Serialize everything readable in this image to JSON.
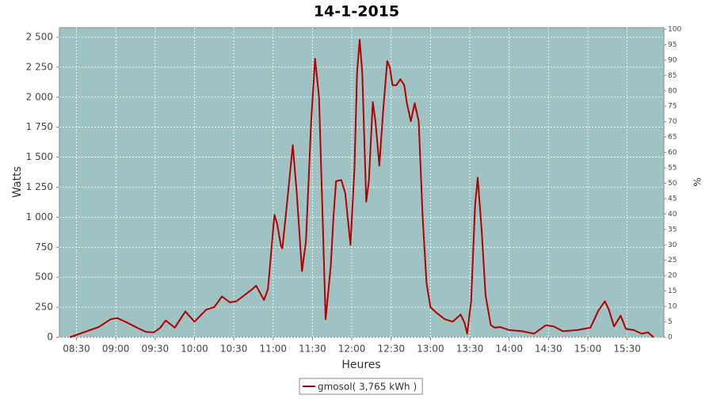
{
  "chart_data": {
    "type": "line",
    "title": "14-1-2015",
    "x_label": "Heures",
    "y_label": "Watts",
    "y2_label": "%",
    "x": [
      "08:25",
      "08:47",
      "08:56",
      "09:01",
      "09:09",
      "09:17",
      "09:23",
      "09:29",
      "09:34",
      "09:38",
      "09:45",
      "09:53",
      "10:00",
      "10:09",
      "10:15",
      "10:21",
      "10:27",
      "10:32",
      "10:44",
      "10:47",
      "10:53",
      "10:56",
      "11:01",
      "11:03",
      "11:06",
      "11:07",
      "11:10",
      "11:15",
      "11:18",
      "11:22",
      "11:25",
      "11:29",
      "11:32",
      "11:35",
      "11:38",
      "11:40",
      "11:44",
      "11:46",
      "11:48",
      "11:52",
      "11:55",
      "11:59",
      "12:02",
      "12:04",
      "12:06",
      "12:08",
      "12:11",
      "12:13",
      "12:16",
      "12:18",
      "12:21",
      "12:24",
      "12:27",
      "12:29",
      "12:31",
      "12:34",
      "12:37",
      "12:40",
      "12:42",
      "12:45",
      "12:48",
      "12:51",
      "12:54",
      "12:57",
      "13:00",
      "13:05",
      "13:11",
      "13:17",
      "13:23",
      "13:26",
      "13:28",
      "13:31",
      "13:34",
      "13:36",
      "13:39",
      "13:42",
      "13:46",
      "13:49",
      "13:53",
      "14:00",
      "14:10",
      "14:19",
      "14:28",
      "14:34",
      "14:41",
      "14:52",
      "15:02",
      "15:08",
      "15:13",
      "15:16",
      "15:20",
      "15:25",
      "15:29",
      "15:35",
      "15:41",
      "15:46",
      "15:50"
    ],
    "series": [
      {
        "name": "gmosol( 3,765 kWh )",
        "color": "#b00000",
        "values": [
          0,
          85,
          150,
          160,
          120,
          75,
          45,
          40,
          80,
          140,
          80,
          215,
          130,
          230,
          250,
          340,
          290,
          300,
          400,
          430,
          310,
          400,
          1020,
          950,
          760,
          740,
          1050,
          1600,
          1200,
          550,
          800,
          1800,
          2320,
          2000,
          900,
          150,
          600,
          1000,
          1300,
          1310,
          1200,
          770,
          1400,
          2200,
          2480,
          2200,
          1130,
          1300,
          1960,
          1800,
          1430,
          1900,
          2300,
          2250,
          2100,
          2100,
          2150,
          2100,
          1950,
          1800,
          1950,
          1800,
          1000,
          450,
          250,
          200,
          150,
          130,
          190,
          120,
          30,
          300,
          1100,
          1330,
          900,
          350,
          100,
          80,
          85,
          60,
          50,
          30,
          100,
          90,
          50,
          60,
          80,
          220,
          300,
          230,
          90,
          180,
          70,
          60,
          30,
          40,
          0
        ]
      }
    ],
    "xlim": [
      "08:17",
      "15:58"
    ],
    "xticks": [
      "08:30",
      "09:00",
      "09:30",
      "10:00",
      "10:30",
      "11:00",
      "11:30",
      "12:00",
      "12:30",
      "13:00",
      "13:30",
      "14:00",
      "14:30",
      "15:00",
      "15:30"
    ],
    "ylim": [
      0,
      2579
    ],
    "yticks": [
      0,
      250,
      500,
      750,
      {
        "value": 1000,
        "label": "1 000"
      },
      {
        "value": 1250,
        "label": "1 250"
      },
      {
        "value": 1500,
        "label": "1 500"
      },
      {
        "value": 1750,
        "label": "1 750"
      },
      {
        "value": 2000,
        "label": "2 000"
      },
      {
        "value": 2250,
        "label": "2 250"
      },
      {
        "value": 2500,
        "label": "2 500"
      }
    ],
    "y2lim": [
      0,
      100.5
    ],
    "y2ticks": [
      0,
      5,
      10,
      15,
      20,
      25,
      30,
      35,
      40,
      45,
      50,
      55,
      60,
      65,
      70,
      75,
      80,
      85,
      90,
      95,
      100
    ],
    "grid": true,
    "plot_background": "#9fc3c3",
    "legend": "bottom"
  }
}
